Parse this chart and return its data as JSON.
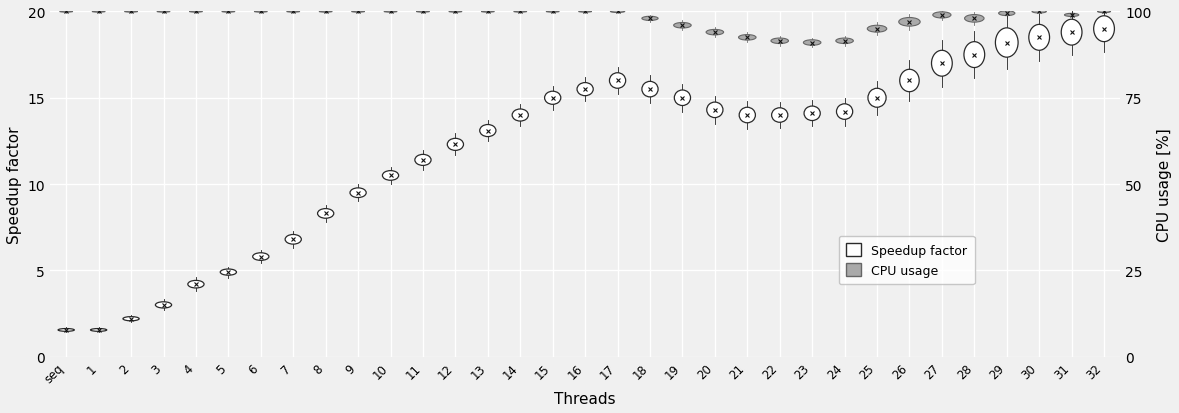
{
  "x_labels": [
    "seq",
    "1",
    "2",
    "3",
    "4",
    "5",
    "6",
    "7",
    "8",
    "9",
    "10",
    "11",
    "12",
    "13",
    "14",
    "15",
    "16",
    "17",
    "18",
    "19",
    "20",
    "21",
    "22",
    "23",
    "24",
    "25",
    "26",
    "27",
    "28",
    "29",
    "30",
    "31",
    "32"
  ],
  "speedup_mean": [
    1.55,
    1.55,
    2.2,
    3.0,
    4.2,
    4.9,
    5.8,
    6.8,
    8.3,
    9.5,
    10.5,
    11.4,
    12.3,
    13.1,
    14.0,
    15.0,
    15.5,
    16.0,
    15.5,
    15.0,
    14.3,
    14.0,
    14.0,
    14.1,
    14.2,
    15.0,
    16.0,
    17.0,
    17.5,
    18.2,
    18.5,
    18.8,
    19.0
  ],
  "speedup_half_height": [
    0.08,
    0.08,
    0.12,
    0.18,
    0.22,
    0.18,
    0.22,
    0.28,
    0.28,
    0.28,
    0.28,
    0.32,
    0.35,
    0.35,
    0.35,
    0.38,
    0.38,
    0.45,
    0.45,
    0.45,
    0.45,
    0.45,
    0.42,
    0.42,
    0.45,
    0.55,
    0.65,
    0.75,
    0.75,
    0.85,
    0.75,
    0.75,
    0.75
  ],
  "speedup_half_width": [
    0.25,
    0.25,
    0.25,
    0.25,
    0.25,
    0.25,
    0.25,
    0.25,
    0.25,
    0.25,
    0.25,
    0.25,
    0.25,
    0.25,
    0.25,
    0.25,
    0.25,
    0.25,
    0.25,
    0.25,
    0.25,
    0.25,
    0.25,
    0.25,
    0.25,
    0.28,
    0.3,
    0.32,
    0.32,
    0.35,
    0.32,
    0.32,
    0.32
  ],
  "cpu_mean": [
    20.0,
    20.0,
    20.0,
    20.0,
    20.0,
    20.0,
    20.0,
    20.0,
    20.0,
    20.0,
    20.0,
    20.0,
    20.0,
    20.0,
    20.0,
    20.0,
    20.0,
    20.0,
    19.6,
    19.2,
    18.8,
    18.5,
    18.3,
    18.2,
    18.3,
    19.0,
    19.4,
    19.8,
    19.6,
    19.9,
    20.0,
    19.8,
    20.0
  ],
  "cpu_half_height": [
    0.04,
    0.04,
    0.04,
    0.04,
    0.04,
    0.04,
    0.04,
    0.04,
    0.04,
    0.04,
    0.04,
    0.04,
    0.04,
    0.04,
    0.04,
    0.04,
    0.04,
    0.06,
    0.12,
    0.16,
    0.16,
    0.16,
    0.16,
    0.16,
    0.16,
    0.2,
    0.25,
    0.18,
    0.22,
    0.14,
    0.09,
    0.09,
    0.07
  ],
  "cpu_half_width": [
    0.2,
    0.2,
    0.2,
    0.2,
    0.2,
    0.2,
    0.2,
    0.2,
    0.2,
    0.2,
    0.2,
    0.2,
    0.2,
    0.2,
    0.2,
    0.2,
    0.2,
    0.22,
    0.25,
    0.27,
    0.27,
    0.27,
    0.27,
    0.27,
    0.27,
    0.3,
    0.33,
    0.28,
    0.3,
    0.25,
    0.22,
    0.22,
    0.2
  ],
  "ylim_left": [
    0,
    20
  ],
  "ylim_right": [
    0,
    100
  ],
  "yticks_left": [
    0,
    5,
    10,
    15,
    20
  ],
  "yticks_right": [
    0,
    25,
    50,
    75,
    100
  ],
  "background_color": "#f0f0f0",
  "grid_color": "#ffffff",
  "speedup_face_color": "#ffffff",
  "speedup_edge_color": "#2a2a2a",
  "cpu_face_color": "#aaaaaa",
  "cpu_edge_color": "#666666",
  "marker_color": "#111111",
  "xlabel": "Threads",
  "ylabel_left": "Speedup factor",
  "ylabel_right": "CPU usage [%]"
}
